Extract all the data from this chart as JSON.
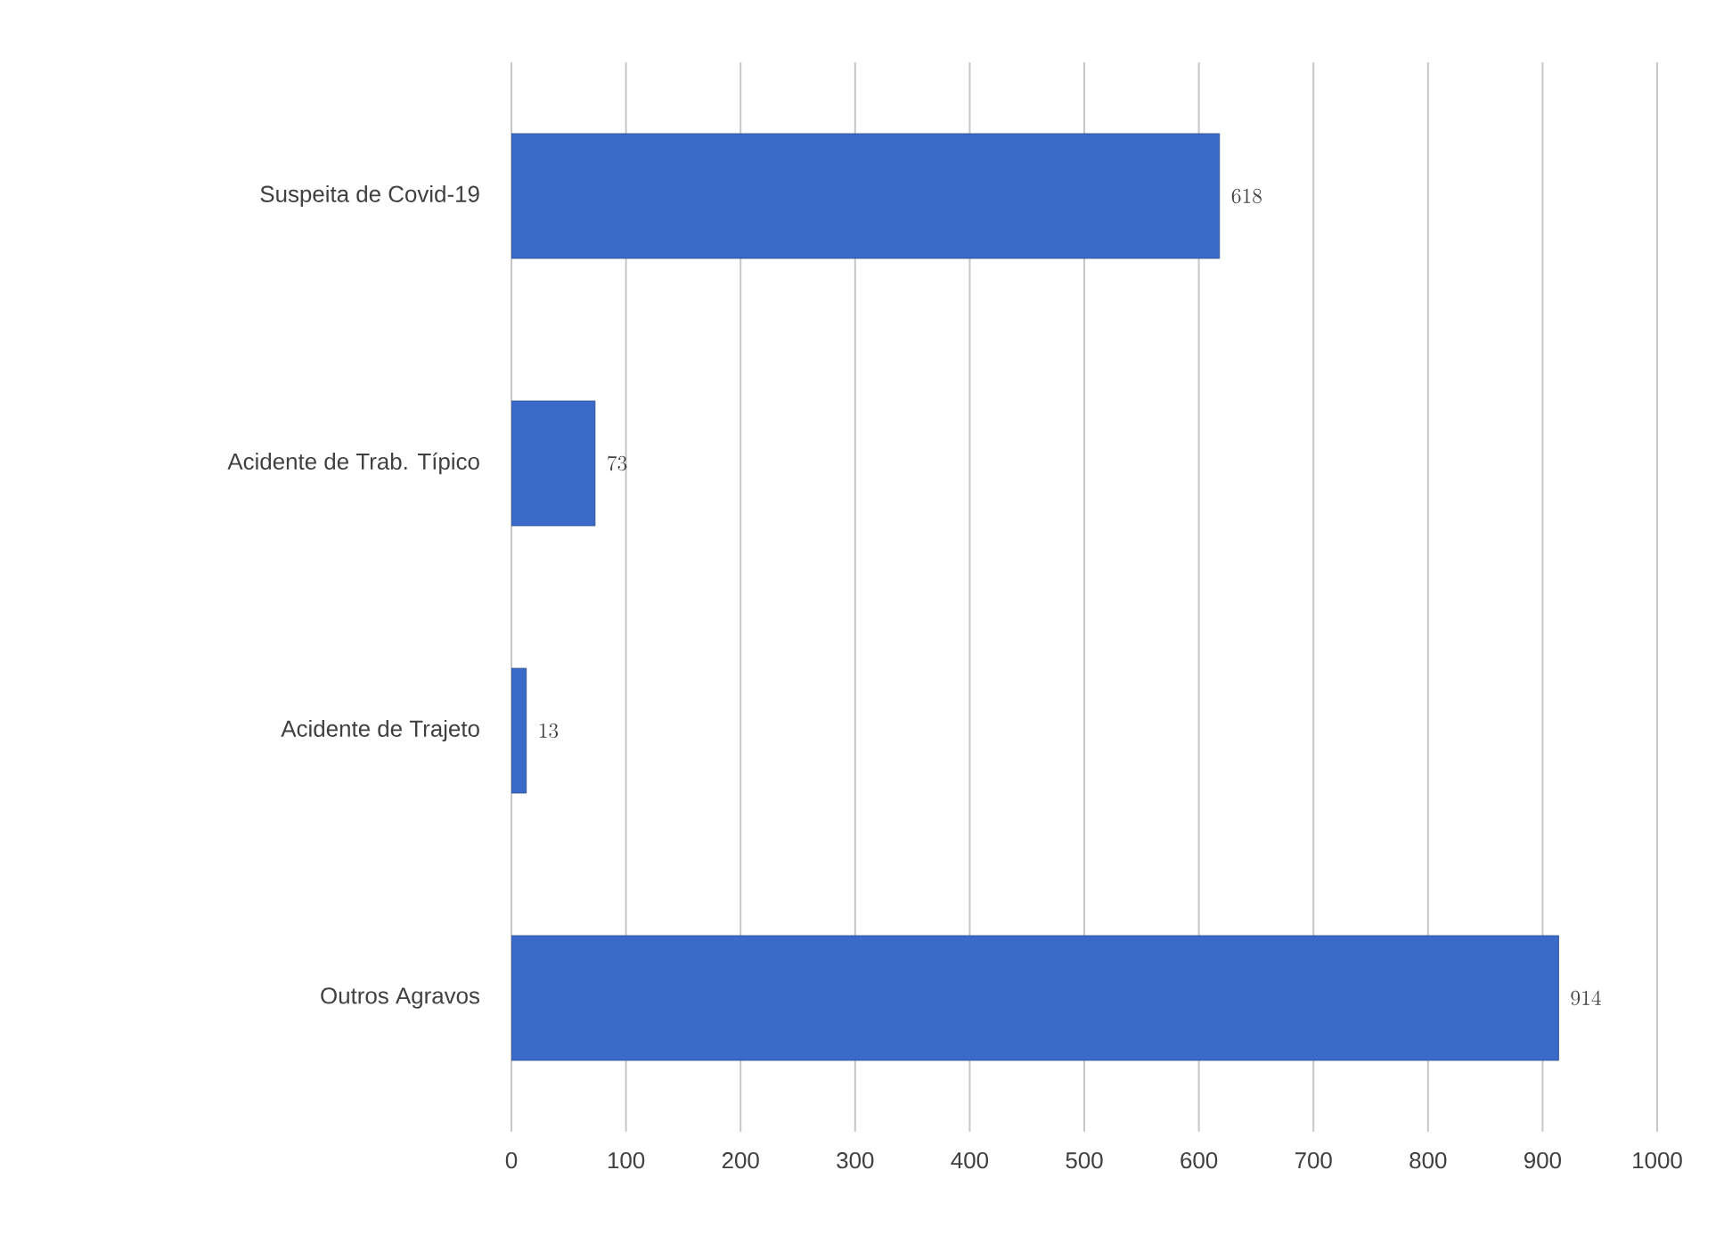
{
  "chart_data": {
    "type": "bar",
    "orientation": "horizontal",
    "categories": [
      "Suspeita de Covid-19",
      "Acidente de Trab. Típico",
      "Acidente de Trajeto",
      "Outros Agravos"
    ],
    "values": [
      618,
      73,
      13,
      914
    ],
    "color": "#3a6bc8",
    "xlim": [
      0,
      1000
    ],
    "xticks": [
      0,
      100,
      200,
      300,
      400,
      500,
      600,
      700,
      800,
      900,
      1000
    ],
    "grid": "x",
    "data_labels": true
  }
}
